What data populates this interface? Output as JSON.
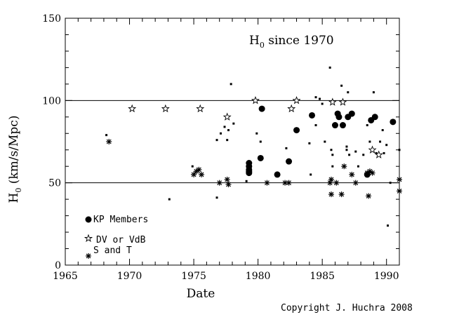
{
  "chart_data": {
    "type": "scatter",
    "title": "H",
    "title_subscript": "0",
    "title_rest": " since 1970",
    "xlabel": "Date",
    "ylabel_main": "H",
    "ylabel_sub": "0",
    "ylabel_rest": " (km/s/Mpc)",
    "xlim": [
      1965,
      1991
    ],
    "ylim": [
      0,
      150
    ],
    "x_ticks": [
      1965,
      1970,
      1975,
      1980,
      1985,
      1990
    ],
    "y_ticks": [
      0,
      50,
      100,
      150
    ],
    "reference_lines": [
      50,
      100
    ],
    "legend_position": "bottom-left",
    "series": [
      {
        "name": "KP Members",
        "marker": "large-dot",
        "points": [
          [
            1979.3,
            56
          ],
          [
            1979.3,
            58
          ],
          [
            1979.3,
            60
          ],
          [
            1979.3,
            62
          ],
          [
            1979.3,
            57
          ],
          [
            1980.2,
            65
          ],
          [
            1980.3,
            95
          ],
          [
            1981.5,
            55
          ],
          [
            1982.4,
            63
          ],
          [
            1983.0,
            82
          ],
          [
            1984.2,
            91
          ],
          [
            1986.0,
            85
          ],
          [
            1986.2,
            92
          ],
          [
            1986.3,
            90
          ],
          [
            1986.6,
            85
          ],
          [
            1987.0,
            90
          ],
          [
            1987.3,
            92
          ],
          [
            1988.5,
            55
          ],
          [
            1988.8,
            88
          ],
          [
            1989.1,
            90
          ],
          [
            1990.5,
            87
          ]
        ]
      },
      {
        "name": "DV or VdB",
        "marker": "star",
        "points": [
          [
            1970.2,
            95
          ],
          [
            1972.8,
            95
          ],
          [
            1975.5,
            95
          ],
          [
            1977.6,
            90
          ],
          [
            1979.8,
            100
          ],
          [
            1982.6,
            95
          ],
          [
            1983.0,
            100
          ],
          [
            1985.8,
            99
          ],
          [
            1986.6,
            99
          ],
          [
            1988.9,
            70
          ],
          [
            1989.4,
            67
          ]
        ]
      },
      {
        "name": "S and T",
        "marker": "asterisk",
        "points": [
          [
            1968.4,
            75
          ],
          [
            1975.0,
            55
          ],
          [
            1975.2,
            57
          ],
          [
            1975.4,
            58
          ],
          [
            1975.6,
            55
          ],
          [
            1977.0,
            50
          ],
          [
            1977.6,
            52
          ],
          [
            1977.7,
            49
          ],
          [
            1980.7,
            50
          ],
          [
            1982.1,
            50
          ],
          [
            1982.4,
            50
          ],
          [
            1985.6,
            50
          ],
          [
            1985.7,
            52
          ],
          [
            1985.7,
            43
          ],
          [
            1986.1,
            50
          ],
          [
            1986.5,
            43
          ],
          [
            1986.7,
            60
          ],
          [
            1987.3,
            55
          ],
          [
            1987.6,
            50
          ],
          [
            1988.5,
            56
          ],
          [
            1988.6,
            42
          ],
          [
            1988.7,
            57
          ],
          [
            1988.9,
            56
          ],
          [
            1991.0,
            45
          ],
          [
            1991.0,
            52
          ]
        ]
      },
      {
        "name": "",
        "marker": "small-dot",
        "points": [
          [
            1968.2,
            79
          ],
          [
            1973.1,
            40
          ],
          [
            1974.9,
            60
          ],
          [
            1976.8,
            41
          ],
          [
            1976.8,
            76
          ],
          [
            1977.1,
            80
          ],
          [
            1977.4,
            84
          ],
          [
            1977.6,
            76
          ],
          [
            1977.7,
            82
          ],
          [
            1977.9,
            110
          ],
          [
            1978.1,
            86
          ],
          [
            1979.1,
            51
          ],
          [
            1979.9,
            80
          ],
          [
            1980.2,
            75
          ],
          [
            1982.2,
            71
          ],
          [
            1984.0,
            74
          ],
          [
            1984.1,
            55
          ],
          [
            1984.5,
            102
          ],
          [
            1984.5,
            85
          ],
          [
            1984.8,
            101
          ],
          [
            1985.0,
            98
          ],
          [
            1985.2,
            75
          ],
          [
            1985.6,
            120
          ],
          [
            1985.7,
            70
          ],
          [
            1985.8,
            67
          ],
          [
            1985.8,
            60
          ],
          [
            1986.5,
            109
          ],
          [
            1986.9,
            72
          ],
          [
            1986.9,
            70
          ],
          [
            1987.0,
            105
          ],
          [
            1987.1,
            67
          ],
          [
            1987.6,
            69
          ],
          [
            1987.8,
            60
          ],
          [
            1988.2,
            67
          ],
          [
            1988.5,
            85
          ],
          [
            1988.7,
            75
          ],
          [
            1989.0,
            105
          ],
          [
            1989.2,
            68
          ],
          [
            1989.5,
            75
          ],
          [
            1989.7,
            82
          ],
          [
            1989.8,
            68
          ],
          [
            1990.0,
            73
          ],
          [
            1990.1,
            24
          ],
          [
            1990.3,
            50
          ],
          [
            1991.0,
            70
          ]
        ]
      }
    ]
  },
  "copyright": "Copyright  J. Huchra 2008"
}
